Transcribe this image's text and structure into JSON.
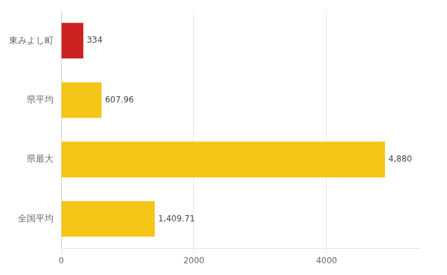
{
  "chart_data": {
    "type": "bar",
    "orientation": "horizontal",
    "categories": [
      "東みよし町",
      "県平均",
      "県最大",
      "全国平均"
    ],
    "values": [
      334,
      607.96,
      4880,
      1409.71
    ],
    "value_labels": [
      "334",
      "607.96",
      "4,880",
      "1,409.71"
    ],
    "colors": [
      "#cc2222",
      "#f5c518",
      "#f5c518",
      "#f5c518"
    ],
    "xlim": [
      0,
      5400
    ],
    "xticks": [
      0,
      2000,
      4000
    ],
    "grid": true,
    "data_labels": true
  }
}
